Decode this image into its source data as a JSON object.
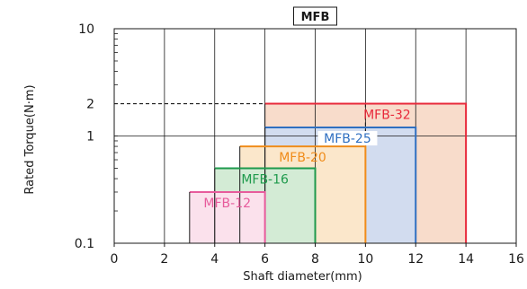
{
  "chart_data": {
    "type": "bar",
    "title": "MFB",
    "xlabel": "Shaft diameter(mm)",
    "ylabel": "Rated Torque(N·m)",
    "xlim": [
      0,
      16
    ],
    "ylim": [
      0.1,
      10
    ],
    "yscale": "log",
    "grid": true,
    "xticks": [
      "0",
      "2",
      "4",
      "6",
      "8",
      "10",
      "12",
      "14",
      "16"
    ],
    "yticks": [
      {
        "value": 0.1,
        "label": "0.1"
      },
      {
        "value": 1,
        "label": "1"
      },
      {
        "value": 2,
        "label": "2"
      },
      {
        "value": 10,
        "label": "10"
      }
    ],
    "reference_line": {
      "y": 2,
      "style": "dashed"
    },
    "series": [
      {
        "name": "MFB-32",
        "x": [
          6,
          14
        ],
        "torque": 2,
        "color": "#e8283a",
        "fill": "#f8dccb"
      },
      {
        "name": "MFB-25",
        "x": [
          6,
          12
        ],
        "torque": 1.2,
        "color": "#2f6fc1",
        "fill": "#d2dcef"
      },
      {
        "name": "MFB-20",
        "x": [
          5,
          10
        ],
        "torque": 0.8,
        "color": "#f08c1a",
        "fill": "#fbe7cb"
      },
      {
        "name": "MFB-16",
        "x": [
          4,
          8
        ],
        "torque": 0.5,
        "color": "#1e9a4c",
        "fill": "#d3ebd5"
      },
      {
        "name": "MFB-12",
        "x": [
          3,
          6
        ],
        "torque": 0.3,
        "color": "#e75b9c",
        "fill": "#fbe1ec"
      }
    ]
  }
}
